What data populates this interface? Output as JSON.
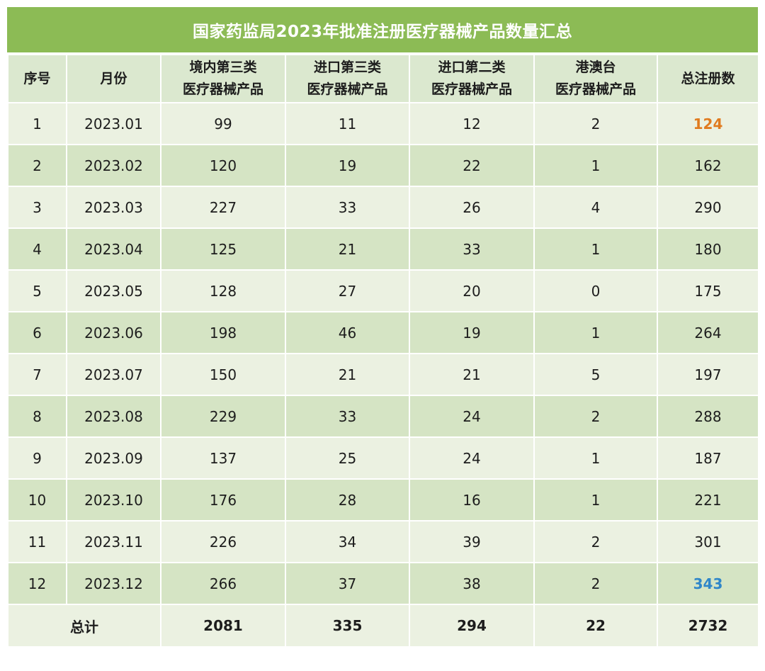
{
  "title": "国家药监局2023年批准注册医疗器械产品数量汇总",
  "headers": {
    "index": "序号",
    "month": "月份",
    "domestic3_line1": "境内第三类",
    "domestic3_line2": "医疗器械产品",
    "import3_line1": "进口第三类",
    "import3_line2": "医疗器械产品",
    "import2_line1": "进口第二类",
    "import2_line2": "医疗器械产品",
    "hkmt_line1": "港澳台",
    "hkmt_line2": "医疗器械产品",
    "total": "总注册数"
  },
  "rows": [
    {
      "index": "1",
      "month": "2023.01",
      "domestic3": "99",
      "import3": "11",
      "import2": "12",
      "hkmt": "2",
      "total": "124"
    },
    {
      "index": "2",
      "month": "2023.02",
      "domestic3": "120",
      "import3": "19",
      "import2": "22",
      "hkmt": "1",
      "total": "162"
    },
    {
      "index": "3",
      "month": "2023.03",
      "domestic3": "227",
      "import3": "33",
      "import2": "26",
      "hkmt": "4",
      "total": "290"
    },
    {
      "index": "4",
      "month": "2023.04",
      "domestic3": "125",
      "import3": "21",
      "import2": "33",
      "hkmt": "1",
      "total": "180"
    },
    {
      "index": "5",
      "month": "2023.05",
      "domestic3": "128",
      "import3": "27",
      "import2": "20",
      "hkmt": "0",
      "total": "175"
    },
    {
      "index": "6",
      "month": "2023.06",
      "domestic3": "198",
      "import3": "46",
      "import2": "19",
      "hkmt": "1",
      "total": "264"
    },
    {
      "index": "7",
      "month": "2023.07",
      "domestic3": "150",
      "import3": "21",
      "import2": "21",
      "hkmt": "5",
      "total": "197"
    },
    {
      "index": "8",
      "month": "2023.08",
      "domestic3": "229",
      "import3": "33",
      "import2": "24",
      "hkmt": "2",
      "total": "288"
    },
    {
      "index": "9",
      "month": "2023.09",
      "domestic3": "137",
      "import3": "25",
      "import2": "24",
      "hkmt": "1",
      "total": "187"
    },
    {
      "index": "10",
      "month": "2023.10",
      "domestic3": "176",
      "import3": "28",
      "import2": "16",
      "hkmt": "1",
      "total": "221"
    },
    {
      "index": "11",
      "month": "2023.11",
      "domestic3": "226",
      "import3": "34",
      "import2": "39",
      "hkmt": "2",
      "total": "301"
    },
    {
      "index": "12",
      "month": "2023.12",
      "domestic3": "266",
      "import3": "37",
      "import2": "38",
      "hkmt": "2",
      "total": "343"
    }
  ],
  "footer": {
    "label": "总计",
    "domestic3": "2081",
    "import3": "335",
    "import2": "294",
    "hkmt": "22",
    "total": "2732"
  },
  "colors": {
    "title_bg": "#8cbb55",
    "min_total_highlight": "#e07b1f",
    "max_total_highlight": "#2f86c9"
  }
}
